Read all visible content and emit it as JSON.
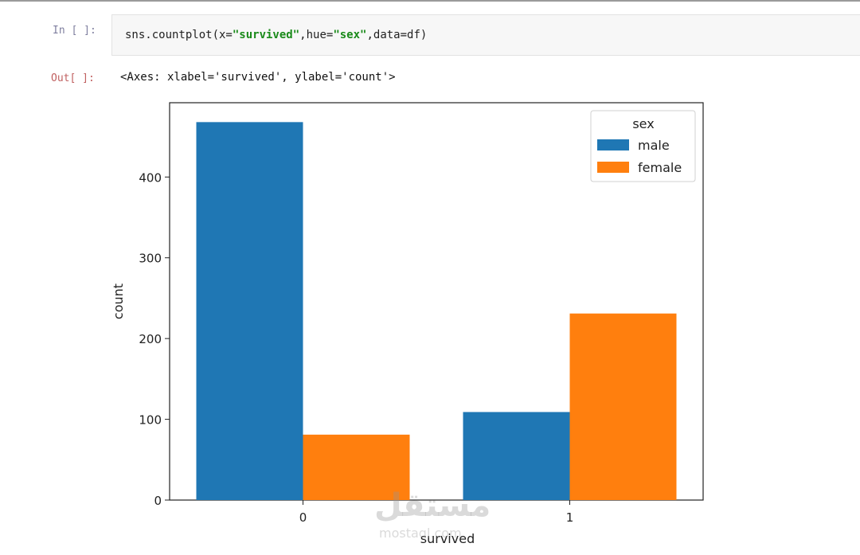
{
  "notebook": {
    "in_prompt": "In [ ]:",
    "out_prompt": "Out[ ]:",
    "code_prefix": "sns.countplot(x=",
    "code_arg_x": "\"survived\"",
    "code_mid1": ",hue=",
    "code_arg_hue": "\"sex\"",
    "code_suffix": ",data=df)",
    "output_text": "<Axes: xlabel='survived', ylabel='count'>"
  },
  "watermark": {
    "main": "مستقل",
    "sub": "mostaql.com"
  },
  "chart_data": {
    "type": "bar",
    "categories": [
      "0",
      "1"
    ],
    "series": [
      {
        "name": "male",
        "values": [
          468,
          109
        ],
        "color": "#1f77b4"
      },
      {
        "name": "female",
        "values": [
          81,
          231
        ],
        "color": "#ff7f0e"
      }
    ],
    "xlabel": "survived",
    "ylabel": "count",
    "ylim": [
      0,
      492
    ],
    "yticks": [
      0,
      100,
      200,
      300,
      400
    ],
    "legend_title": "sex",
    "legend_position": "top-right",
    "grid": false
  }
}
